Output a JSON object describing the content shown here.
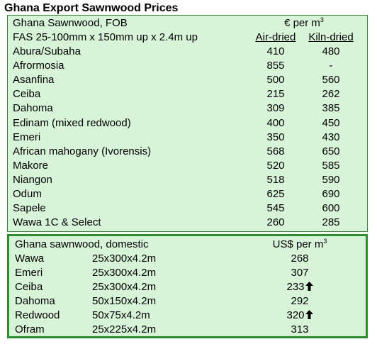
{
  "title": "Ghana Export Sawnwood Prices",
  "fob": {
    "heading": "Ghana Sawnwood, FOB",
    "unit_prefix": "€ per m",
    "unit_sup": "3",
    "spec": "FAS 25-100mm x 150mm up x 2.4m up",
    "col_air": "Air-dried",
    "col_kiln": "Kiln-dried",
    "rows": [
      {
        "name": "Abura/Subaha",
        "air": "410",
        "kiln": "480"
      },
      {
        "name": "Afrormosia",
        "air": "855",
        "kiln": "-"
      },
      {
        "name": "Asanfina",
        "air": "500",
        "kiln": "560"
      },
      {
        "name": "Ceiba",
        "air": "215",
        "kiln": "262"
      },
      {
        "name": "Dahoma",
        "air": "309",
        "kiln": "385"
      },
      {
        "name": "Edinam (mixed redwood)",
        "air": "400",
        "kiln": "450"
      },
      {
        "name": "Emeri",
        "air": "350",
        "kiln": "430"
      },
      {
        "name": "African mahogany (Ivorensis)",
        "air": "568",
        "kiln": "650"
      },
      {
        "name": "Makore",
        "air": "520",
        "kiln": "585"
      },
      {
        "name": "Niangon",
        "air": "518",
        "kiln": "590"
      },
      {
        "name": "Odum",
        "air": "625",
        "kiln": "690"
      },
      {
        "name": "Sapele",
        "air": "545",
        "kiln": "600"
      },
      {
        "name": "Wawa 1C & Select",
        "air": "260",
        "kiln": "285"
      }
    ]
  },
  "domestic": {
    "heading": "Ghana sawnwood, domestic",
    "unit_prefix": "US$ per m",
    "unit_sup": "3",
    "rows": [
      {
        "name": "Wawa",
        "size": "25x300x4.2m",
        "price": "268",
        "trend": ""
      },
      {
        "name": "Emeri",
        "size": "25x300x4.2m",
        "price": "307",
        "trend": ""
      },
      {
        "name": "Ceiba",
        "size": "25x300x4.2m",
        "price": "233",
        "trend": "up-arrow-icon"
      },
      {
        "name": "Dahoma",
        "size": "50x150x4.2m",
        "price": "292",
        "trend": ""
      },
      {
        "name": "Redwood",
        "size": "50x75x4.2m",
        "price": "320",
        "trend": "up-arrow-icon"
      },
      {
        "name": "Ofram",
        "size": "25x225x4.2m",
        "price": "313",
        "trend": ""
      }
    ]
  }
}
